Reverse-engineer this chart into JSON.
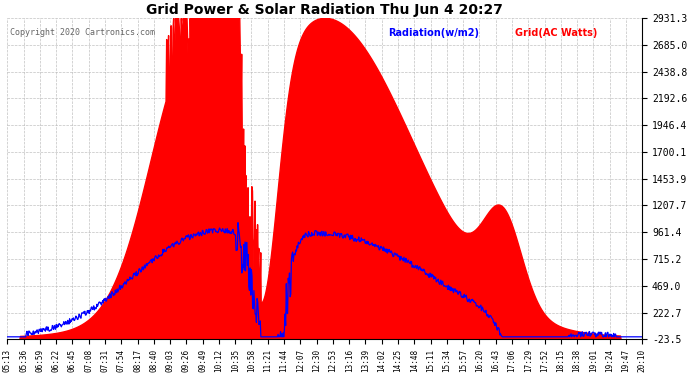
{
  "title": "Grid Power & Solar Radiation Thu Jun 4 20:27",
  "copyright": "Copyright 2020 Cartronics.com",
  "legend_radiation": "Radiation(w/m2)",
  "legend_grid": "Grid(AC Watts)",
  "y_ticks": [
    -23.5,
    222.7,
    469.0,
    715.2,
    961.4,
    1207.7,
    1453.9,
    1700.1,
    1946.4,
    2192.6,
    2438.8,
    2685.0,
    2931.3
  ],
  "y_min": -23.5,
  "y_max": 2931.3,
  "time_labels": [
    "05:13",
    "05:36",
    "06:59",
    "06:22",
    "06:45",
    "07:08",
    "07:31",
    "07:54",
    "08:17",
    "08:40",
    "09:03",
    "09:26",
    "09:49",
    "10:12",
    "10:35",
    "10:58",
    "11:21",
    "11:44",
    "12:07",
    "12:30",
    "12:53",
    "13:16",
    "13:39",
    "14:02",
    "14:25",
    "14:48",
    "15:11",
    "15:34",
    "15:57",
    "16:20",
    "16:43",
    "17:06",
    "17:29",
    "17:52",
    "18:15",
    "18:38",
    "19:01",
    "19:24",
    "19:47",
    "20:10"
  ],
  "background_color": "#ffffff",
  "grid_color": "#bbbbbb",
  "red_color": "#ff0000",
  "blue_color": "#0000ff",
  "title_color": "#000000",
  "copyright_color": "#666666"
}
